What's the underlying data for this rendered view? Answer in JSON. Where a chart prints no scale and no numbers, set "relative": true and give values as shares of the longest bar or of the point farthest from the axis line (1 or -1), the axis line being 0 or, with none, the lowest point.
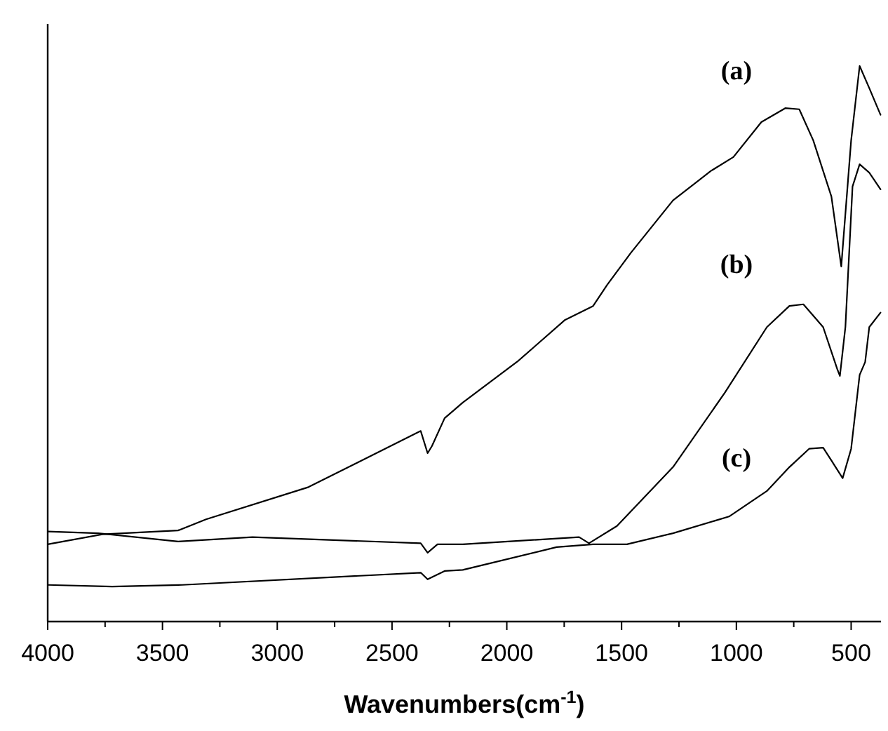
{
  "chart_data": {
    "type": "line",
    "relative": true,
    "xlabel": "Wavenumbers(cm$^{-1}$)",
    "xlim": [
      4000,
      370
    ],
    "xticks": [
      4000,
      {
        "value": 3750,
        "label": null
      },
      3500,
      {
        "value": 3250,
        "label": null
      },
      3000,
      {
        "value": 2750,
        "label": null
      },
      2500,
      {
        "value": 2250,
        "label": null
      },
      2000,
      {
        "value": 1750,
        "label": null
      },
      1500,
      {
        "value": 1250,
        "label": null
      },
      1000,
      {
        "value": 750,
        "label": null
      },
      500
    ],
    "series": [
      {
        "name": "(a)",
        "color": "#000000",
        "x": [
          4000,
          3762,
          3432,
          3310,
          2864,
          2375,
          2345,
          2326,
          2271,
          2192,
          1948,
          1746,
          1624,
          1563,
          1459,
          1276,
          1111,
          1013,
          891,
          787,
          726,
          665,
          586,
          543,
          500,
          463,
          421,
          372
        ],
        "values": [
          0.139,
          0.157,
          0.164,
          0.184,
          0.242,
          0.343,
          0.303,
          0.316,
          0.366,
          0.394,
          0.47,
          0.543,
          0.568,
          0.606,
          0.664,
          0.758,
          0.811,
          0.836,
          0.899,
          0.924,
          0.922,
          0.866,
          0.765,
          0.639,
          0.866,
          1,
          0.96,
          0.912
        ]
      },
      {
        "name": "(b)",
        "color": "#000000",
        "x": [
          4000,
          3780,
          3432,
          3108,
          2375,
          2345,
          2302,
          2192,
          1685,
          1642,
          1520,
          1276,
          1050,
          867,
          769,
          708,
          622,
          561,
          549,
          525,
          494,
          463,
          421,
          372
        ],
        "values": [
          0.162,
          0.159,
          0.144,
          0.152,
          0.141,
          0.124,
          0.139,
          0.139,
          0.152,
          0.141,
          0.172,
          0.278,
          0.412,
          0.53,
          0.568,
          0.571,
          0.53,
          0.455,
          0.442,
          0.53,
          0.783,
          0.823,
          0.808,
          0.778
        ]
      },
      {
        "name": "(c)",
        "color": "#000000",
        "x": [
          4000,
          3719,
          3414,
          2375,
          2345,
          2271,
          2192,
          1783,
          1624,
          1477,
          1276,
          1032,
          867,
          769,
          683,
          622,
          586,
          537,
          500,
          463,
          439,
          421,
          372
        ],
        "values": [
          0.066,
          0.063,
          0.066,
          0.088,
          0.076,
          0.091,
          0.093,
          0.134,
          0.139,
          0.139,
          0.159,
          0.189,
          0.235,
          0.278,
          0.311,
          0.313,
          0.29,
          0.258,
          0.311,
          0.444,
          0.467,
          0.53,
          0.556
        ]
      }
    ]
  }
}
